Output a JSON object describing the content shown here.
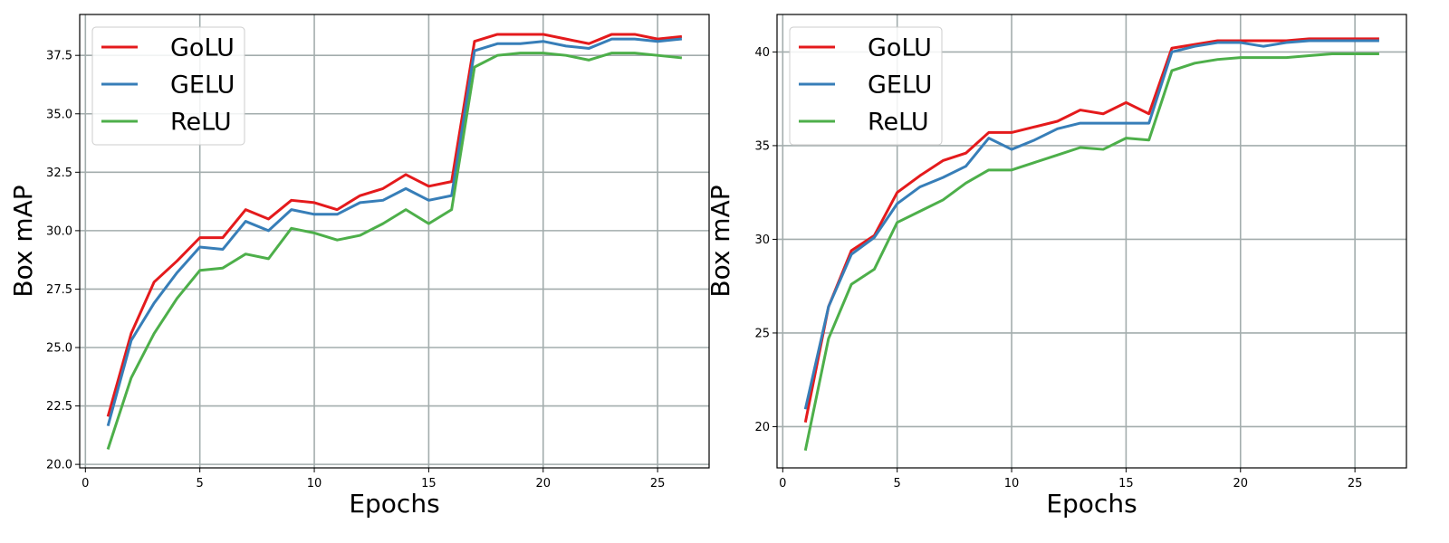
{
  "chart_data": [
    {
      "type": "line",
      "title": "",
      "xlabel": "Epochs",
      "ylabel": "Box mAP",
      "xlim": [
        -0.25,
        27.25
      ],
      "ylim": [
        19.85,
        39.25
      ],
      "xticks": [
        0,
        5,
        10,
        15,
        20,
        25
      ],
      "yticks": [
        20.0,
        22.5,
        25.0,
        27.5,
        30.0,
        32.5,
        35.0,
        37.5
      ],
      "ytick_labels": [
        "20.0",
        "22.5",
        "25.0",
        "27.5",
        "30.0",
        "32.5",
        "35.0",
        "37.5"
      ],
      "grid": true,
      "legend_position": "upper-left",
      "x": [
        1,
        2,
        3,
        4,
        5,
        6,
        7,
        8,
        9,
        10,
        11,
        12,
        13,
        14,
        15,
        16,
        17,
        18,
        19,
        20,
        21,
        22,
        23,
        24,
        25,
        26
      ],
      "series": [
        {
          "name": "GoLU",
          "color": "#e41a1c",
          "values": [
            22.1,
            25.6,
            27.8,
            28.7,
            29.7,
            29.7,
            30.9,
            30.5,
            31.3,
            31.2,
            30.9,
            31.5,
            31.8,
            32.4,
            31.9,
            32.1,
            38.1,
            38.4,
            38.4,
            38.4,
            38.2,
            38.0,
            38.4,
            38.4,
            38.2,
            38.3
          ]
        },
        {
          "name": "GELU",
          "color": "#377eb8",
          "values": [
            21.7,
            25.3,
            26.9,
            28.2,
            29.3,
            29.2,
            30.4,
            30.0,
            30.9,
            30.7,
            30.7,
            31.2,
            31.3,
            31.8,
            31.3,
            31.5,
            37.7,
            38.0,
            38.0,
            38.1,
            37.9,
            37.8,
            38.2,
            38.2,
            38.1,
            38.2
          ]
        },
        {
          "name": "ReLU",
          "color": "#4daf4a",
          "values": [
            20.7,
            23.7,
            25.6,
            27.1,
            28.3,
            28.4,
            29.0,
            28.8,
            30.1,
            29.9,
            29.6,
            29.8,
            30.3,
            30.9,
            30.3,
            30.9,
            37.0,
            37.5,
            37.6,
            37.6,
            37.5,
            37.3,
            37.6,
            37.6,
            37.5,
            37.4
          ]
        }
      ]
    },
    {
      "type": "line",
      "title": "",
      "xlabel": "Epochs",
      "ylabel": "Box mAP",
      "xlim": [
        -0.25,
        27.25
      ],
      "ylim": [
        17.8,
        42.0
      ],
      "xticks": [
        0,
        5,
        10,
        15,
        20,
        25
      ],
      "yticks": [
        20,
        25,
        30,
        35,
        40
      ],
      "ytick_labels": [
        "20",
        "25",
        "30",
        "35",
        "40"
      ],
      "grid": true,
      "legend_position": "upper-left",
      "x": [
        1,
        2,
        3,
        4,
        5,
        6,
        7,
        8,
        9,
        10,
        11,
        12,
        13,
        14,
        15,
        16,
        17,
        18,
        19,
        20,
        21,
        22,
        23,
        24,
        25,
        26
      ],
      "series": [
        {
          "name": "GoLU",
          "color": "#e41a1c",
          "values": [
            20.3,
            26.4,
            29.4,
            30.2,
            32.5,
            33.4,
            34.2,
            34.6,
            35.7,
            35.7,
            36.0,
            36.3,
            36.9,
            36.7,
            37.3,
            36.7,
            40.2,
            40.4,
            40.6,
            40.6,
            40.6,
            40.6,
            40.7,
            40.7,
            40.7,
            40.7
          ]
        },
        {
          "name": "GELU",
          "color": "#377eb8",
          "values": [
            21.0,
            26.4,
            29.2,
            30.1,
            31.9,
            32.8,
            33.3,
            33.9,
            35.4,
            34.8,
            35.3,
            35.9,
            36.2,
            36.2,
            36.2,
            36.2,
            40.0,
            40.3,
            40.5,
            40.5,
            40.3,
            40.5,
            40.6,
            40.6,
            40.6,
            40.6
          ]
        },
        {
          "name": "ReLU",
          "color": "#4daf4a",
          "values": [
            18.8,
            24.7,
            27.6,
            28.4,
            30.9,
            31.5,
            32.1,
            33.0,
            33.7,
            33.7,
            34.1,
            34.5,
            34.9,
            34.8,
            35.4,
            35.3,
            39.0,
            39.4,
            39.6,
            39.7,
            39.7,
            39.7,
            39.8,
            39.9,
            39.9,
            39.9
          ]
        }
      ]
    }
  ]
}
